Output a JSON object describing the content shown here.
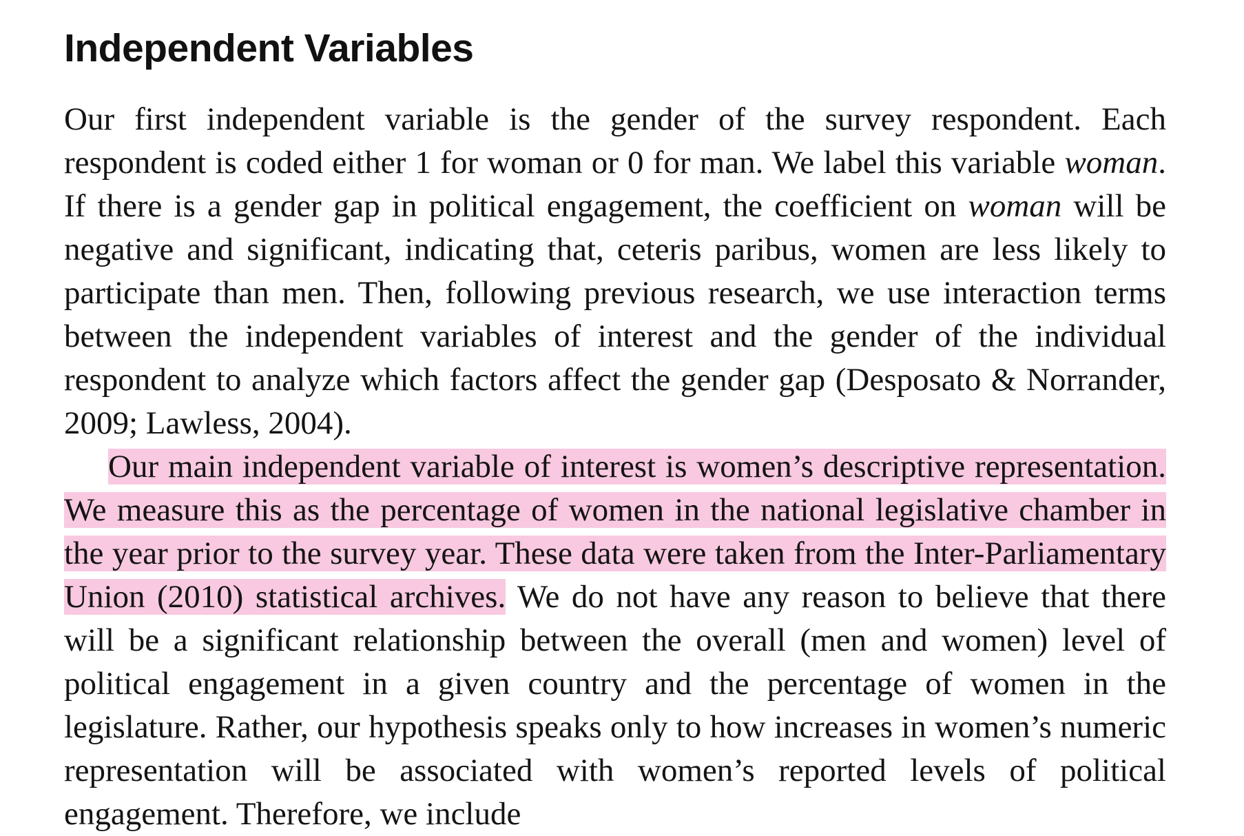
{
  "section": {
    "heading": "Independent Variables"
  },
  "paragraph1": {
    "s1": "Our first independent variable is the gender of the survey respondent. Each respondent is coded either 1 for woman or 0 for man. We label this variable ",
    "italic1": "woman",
    "s2": ". If there is a gender gap in political engagement, the coefficient on ",
    "italic2": "woman",
    "s3": " will be negative and significant, indicating that, ceteris paribus, women are less likely to participate than men. Then, following previous research, we use interaction terms between the independent variables of interest and the gender of the individual respondent to analyze which factors affect the gender gap (Desposato & Norrander, 2009; Lawless, 2004)."
  },
  "paragraph2": {
    "highlighted": "Our main independent variable of interest is women’s descriptive repre­sentation. We measure this as the percentage of women in the national legis­lative chamber in the year prior to the survey year. These data were taken from the Inter-Parliamentary Union (2010) statistical archives.",
    "rest": " We do not have any reason to believe that there will be a significant relationship between the overall (men and women) level of political engagement in a given country and the percentage of women in the legislature. Rather, our hypothesis speaks only to how increases in women’s numeric representation will be associated with women’s reported levels of political engagement. Therefore, we include"
  },
  "colors": {
    "highlight": "#f8c9e0",
    "text": "#141414"
  }
}
